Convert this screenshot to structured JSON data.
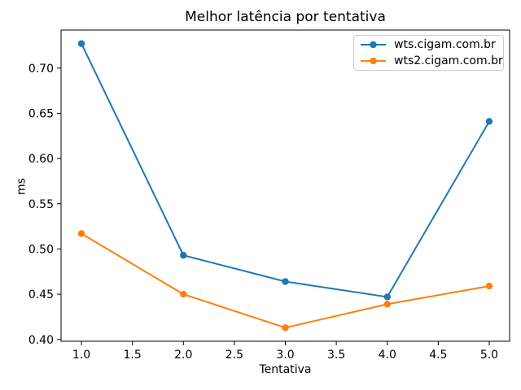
{
  "chart_data": {
    "type": "line",
    "title": "Melhor latência por tentativa",
    "xlabel": "Tentativa",
    "ylabel": "ms",
    "x": [
      1,
      2,
      3,
      4,
      5
    ],
    "series": [
      {
        "name": "wts.cigam.com.br",
        "color": "#1f77b4",
        "values": [
          0.727,
          0.493,
          0.464,
          0.447,
          0.641
        ]
      },
      {
        "name": "wts2.cigam.com.br",
        "color": "#ff7f0e",
        "values": [
          0.517,
          0.45,
          0.413,
          0.439,
          0.459
        ]
      }
    ],
    "xticks": [
      1.0,
      1.5,
      2.0,
      2.5,
      3.0,
      3.5,
      4.0,
      4.5,
      5.0
    ],
    "yticks": [
      0.4,
      0.45,
      0.5,
      0.55,
      0.6,
      0.65,
      0.7
    ],
    "xlim": [
      0.8,
      5.2
    ],
    "ylim": [
      0.398,
      0.742
    ],
    "grid": false,
    "legend_position": "upper right",
    "marker": "circle",
    "spine_color": "#000000",
    "background_color": "#ffffff"
  }
}
